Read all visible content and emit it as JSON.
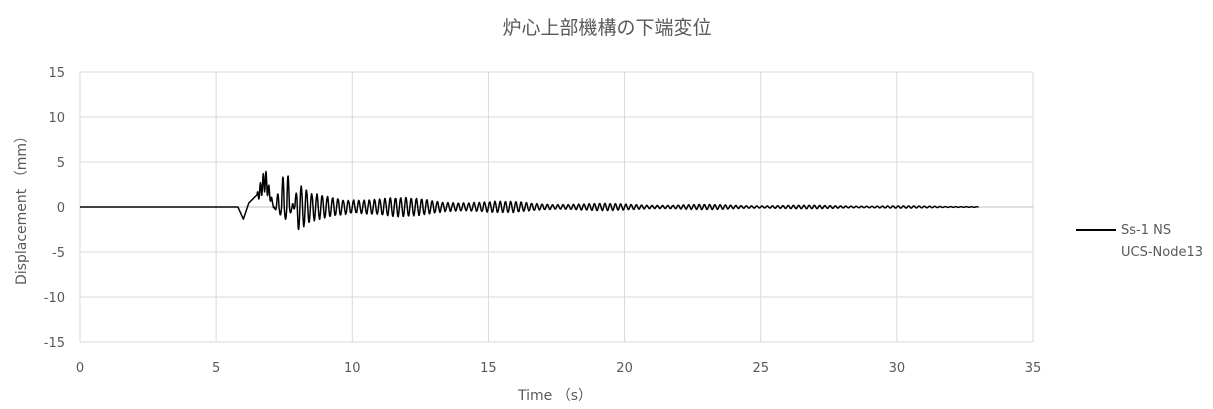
{
  "chart_data": {
    "type": "line",
    "title": "炉心上部機構の下端変位",
    "xlabel": "Time （s）",
    "ylabel": "Displacement （mm）",
    "xlim": [
      0,
      35
    ],
    "ylim": [
      -15,
      15
    ],
    "xticks": [
      0,
      5,
      10,
      15,
      20,
      25,
      30,
      35
    ],
    "yticks": [
      -15,
      -10,
      -5,
      0,
      5,
      10,
      15
    ],
    "xtick_labels": [
      "0",
      "5",
      "10",
      "15",
      "20",
      "25",
      "30",
      "35"
    ],
    "ytick_labels": [
      "-15",
      "-10",
      "-5",
      "0",
      "5",
      "10",
      "15"
    ],
    "grid": true,
    "legend_position": "right",
    "series": [
      {
        "name": "Ss-1 NS UCS-Node13",
        "legend_lines": [
          "Ss-1 NS",
          "UCS-Node13"
        ],
        "color": "#000000",
        "duration": 33.0,
        "envelope_points": [
          [
            0,
            0
          ],
          [
            5.8,
            0
          ],
          [
            6.0,
            -1.5
          ],
          [
            6.2,
            0.5
          ],
          [
            6.5,
            1.5
          ],
          [
            6.8,
            4.4
          ],
          [
            7.0,
            1.5
          ],
          [
            7.4,
            -3.0
          ],
          [
            7.6,
            -4.2
          ],
          [
            8.0,
            2.7
          ],
          [
            8.5,
            1.5
          ],
          [
            9.0,
            1.4
          ],
          [
            10,
            1.4
          ],
          [
            11,
            1.2
          ],
          [
            12,
            1.0
          ],
          [
            13,
            0.9
          ],
          [
            14,
            0.8
          ],
          [
            15,
            0.65
          ],
          [
            17,
            0.5
          ],
          [
            20,
            0.35
          ],
          [
            25,
            0.22
          ],
          [
            30,
            0.13
          ],
          [
            33,
            0.05
          ]
        ],
        "values_note": ""
      }
    ]
  },
  "colors": {
    "axis": "#d9d9d9",
    "grid": "#d9d9d9",
    "text": "#595959",
    "series": "#000000"
  }
}
